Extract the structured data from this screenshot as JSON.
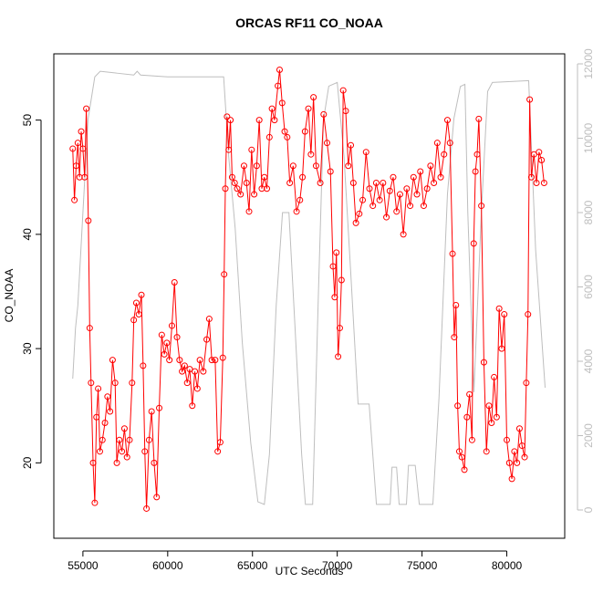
{
  "chart_data": {
    "type": "line",
    "title": "ORCAS RF11 CO_NOAA",
    "xlabel": "UTC Seconds",
    "ylabel": "CO_NOAA",
    "xlim": [
      53284,
      83416
    ],
    "xticks": [
      55000,
      60000,
      65000,
      70000,
      75000,
      80000
    ],
    "ylim": [
      13.4,
      55.8
    ],
    "yticks": [
      20,
      30,
      40,
      50
    ],
    "y2lim": [
      -761,
      12270
    ],
    "y2ticks": [
      0,
      2000,
      4000,
      6000,
      8000,
      10000,
      12000
    ],
    "y2color": "#bebebe",
    "series": [
      {
        "color": "#ff0000",
        "markers": true,
        "x": [
          54400,
          54500,
          54600,
          54700,
          54800,
          54900,
          55000,
          55100,
          55200,
          55320,
          55400,
          55480,
          55600,
          55700,
          55800,
          55900,
          56000,
          56150,
          56300,
          56450,
          56600,
          56750,
          56900,
          57000,
          57150,
          57300,
          57450,
          57600,
          57750,
          57900,
          58000,
          58150,
          58300,
          58450,
          58550,
          58650,
          58750,
          58900,
          59050,
          59200,
          59350,
          59500,
          59650,
          59800,
          59950,
          60100,
          60250,
          60400,
          60550,
          60700,
          60850,
          61000,
          61150,
          61300,
          61450,
          61600,
          61750,
          61900,
          62100,
          62300,
          62450,
          62600,
          62800,
          62950,
          63100,
          63250,
          63330,
          63400,
          63500,
          63600,
          63700,
          63800,
          63950,
          64100,
          64300,
          64500,
          64650,
          64800,
          64950,
          65100,
          65250,
          65400,
          65550,
          65700,
          65850,
          66000,
          66150,
          66300,
          66500,
          66600,
          66750,
          66900,
          67050,
          67200,
          67400,
          67600,
          67800,
          67950,
          68100,
          68300,
          68450,
          68600,
          68750,
          69000,
          69200,
          69400,
          69600,
          69750,
          69850,
          69950,
          70050,
          70150,
          70250,
          70350,
          70500,
          70650,
          70800,
          70950,
          71100,
          71300,
          71500,
          71700,
          71900,
          72100,
          72300,
          72500,
          72700,
          72900,
          73100,
          73300,
          73500,
          73700,
          73900,
          74100,
          74300,
          74500,
          74700,
          74900,
          75100,
          75300,
          75500,
          75700,
          75900,
          76100,
          76300,
          76500,
          76650,
          76800,
          76900,
          77000,
          77100,
          77200,
          77350,
          77500,
          77650,
          77800,
          77950,
          78050,
          78150,
          78250,
          78350,
          78500,
          78650,
          78800,
          78950,
          79100,
          79250,
          79400,
          79550,
          79700,
          79850,
          80000,
          80150,
          80300,
          80450,
          80600,
          80750,
          80900,
          81050,
          81150,
          81250,
          81350,
          81450,
          81600,
          81750,
          81900,
          82050,
          82200
        ],
        "values": [
          47.5,
          43,
          46,
          48,
          45,
          49,
          47.5,
          45,
          51,
          41.2,
          31.8,
          27,
          20,
          16.5,
          24,
          26.5,
          21,
          22,
          23.5,
          25.8,
          24.5,
          29,
          27,
          20,
          22,
          21,
          23,
          20.5,
          22,
          27,
          32.5,
          34,
          33,
          34.7,
          28.5,
          21,
          16,
          22,
          24.5,
          20,
          17,
          24.8,
          31.2,
          29.5,
          30.5,
          29,
          32,
          35.8,
          31,
          29,
          28,
          28.5,
          27,
          28.2,
          25,
          28,
          26.5,
          29,
          28,
          30.8,
          32.6,
          29,
          29,
          21,
          21.8,
          29.2,
          36.5,
          44,
          50.3,
          47.4,
          50,
          45,
          44.5,
          44,
          43.5,
          46,
          44.5,
          42,
          47.4,
          43.5,
          46,
          50,
          44,
          45,
          44,
          48.5,
          51,
          50,
          53,
          54.4,
          51.5,
          49,
          48.5,
          44.5,
          46,
          42,
          43,
          45,
          49,
          51,
          47,
          52,
          46,
          44.5,
          50.5,
          48,
          45.5,
          37.2,
          34.5,
          38.4,
          29.3,
          31.8,
          36,
          52.6,
          50.8,
          46,
          47.8,
          44.5,
          41,
          41.8,
          43,
          47.2,
          44,
          42.5,
          44.5,
          43,
          44.5,
          41.5,
          43.8,
          45,
          42,
          43.5,
          40,
          44,
          42.5,
          45,
          43.5,
          45.5,
          42.5,
          44,
          46,
          44.5,
          48,
          45,
          47,
          50,
          48,
          38.3,
          31,
          33.8,
          25,
          21,
          20.5,
          19.4,
          24,
          26,
          22,
          39.2,
          45.5,
          47,
          50.1,
          42.5,
          28.8,
          21,
          25,
          23.5,
          27.5,
          24,
          33.5,
          30,
          33,
          22,
          20,
          18.6,
          21,
          20,
          23,
          21.5,
          20.5,
          27,
          33,
          51.8,
          45,
          47,
          44.5,
          47.2,
          46.5,
          44.5
        ]
      },
      {
        "color": "#bebebe",
        "axis": "y2",
        "markers": false,
        "x": [
          54400,
          54560,
          54700,
          55000,
          55300,
          55700,
          56020,
          57000,
          58000,
          58200,
          58400,
          60000,
          63300,
          63600,
          63980,
          64400,
          64900,
          65320,
          65700,
          66000,
          66400,
          66770,
          67150,
          67500,
          67900,
          68120,
          68550,
          68900,
          69190,
          69500,
          70000,
          70400,
          70800,
          71230,
          71880,
          72310,
          73120,
          73230,
          73500,
          73650,
          74080,
          74200,
          74600,
          74840,
          75640,
          76000,
          76500,
          76880,
          77260,
          77530,
          77700,
          78060,
          78500,
          78870,
          79150,
          81290,
          81700,
          82260
        ],
        "values": [
          3530,
          4880,
          5500,
          8000,
          10500,
          11650,
          11800,
          11750,
          11700,
          11800,
          11700,
          11650,
          11650,
          9500,
          7580,
          4500,
          1800,
          220,
          150,
          1500,
          5500,
          8000,
          8000,
          5000,
          1500,
          150,
          150,
          6000,
          10500,
          11400,
          11500,
          9500,
          6350,
          2850,
          2850,
          150,
          150,
          1150,
          1150,
          150,
          150,
          1200,
          1200,
          150,
          150,
          3000,
          8500,
          10530,
          11390,
          11450,
          8000,
          3170,
          8000,
          11260,
          11500,
          11550,
          7000,
          3290
        ]
      }
    ]
  }
}
